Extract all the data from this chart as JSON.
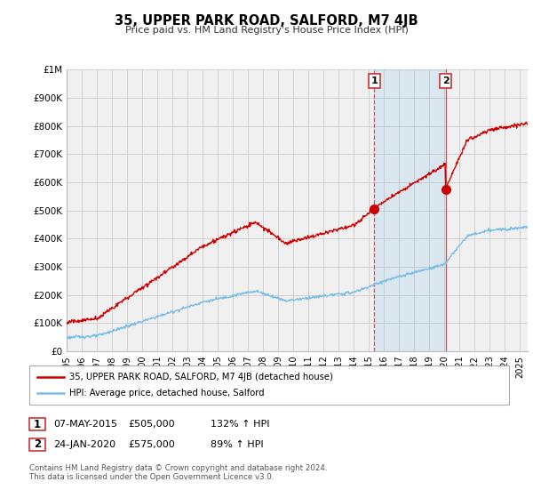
{
  "title": "35, UPPER PARK ROAD, SALFORD, M7 4JB",
  "subtitle": "Price paid vs. HM Land Registry's House Price Index (HPI)",
  "ylim": [
    0,
    1000000
  ],
  "yticks": [
    0,
    100000,
    200000,
    300000,
    400000,
    500000,
    600000,
    700000,
    800000,
    900000,
    1000000
  ],
  "ytick_labels": [
    "£0",
    "£100K",
    "£200K",
    "£300K",
    "£400K",
    "£500K",
    "£600K",
    "£700K",
    "£800K",
    "£900K",
    "£1M"
  ],
  "hpi_color": "#7bbfe8",
  "price_color": "#cc0000",
  "background_color": "#ffffff",
  "plot_bg_color": "#f0f0f0",
  "grid_color": "#cccccc",
  "sale1_x": 2015.35,
  "sale1_y": 505000,
  "sale1_label": "07-MAY-2015",
  "sale1_price": "£505,000",
  "sale1_hpi": "132% ↑ HPI",
  "sale2_x": 2020.07,
  "sale2_y": 575000,
  "sale2_label": "24-JAN-2020",
  "sale2_price": "£575,000",
  "sale2_hpi": "89% ↑ HPI",
  "legend_line1": "35, UPPER PARK ROAD, SALFORD, M7 4JB (detached house)",
  "legend_line2": "HPI: Average price, detached house, Salford",
  "footnote": "Contains HM Land Registry data © Crown copyright and database right 2024.\nThis data is licensed under the Open Government Licence v3.0.",
  "xmin": 1995,
  "xmax": 2025.5
}
